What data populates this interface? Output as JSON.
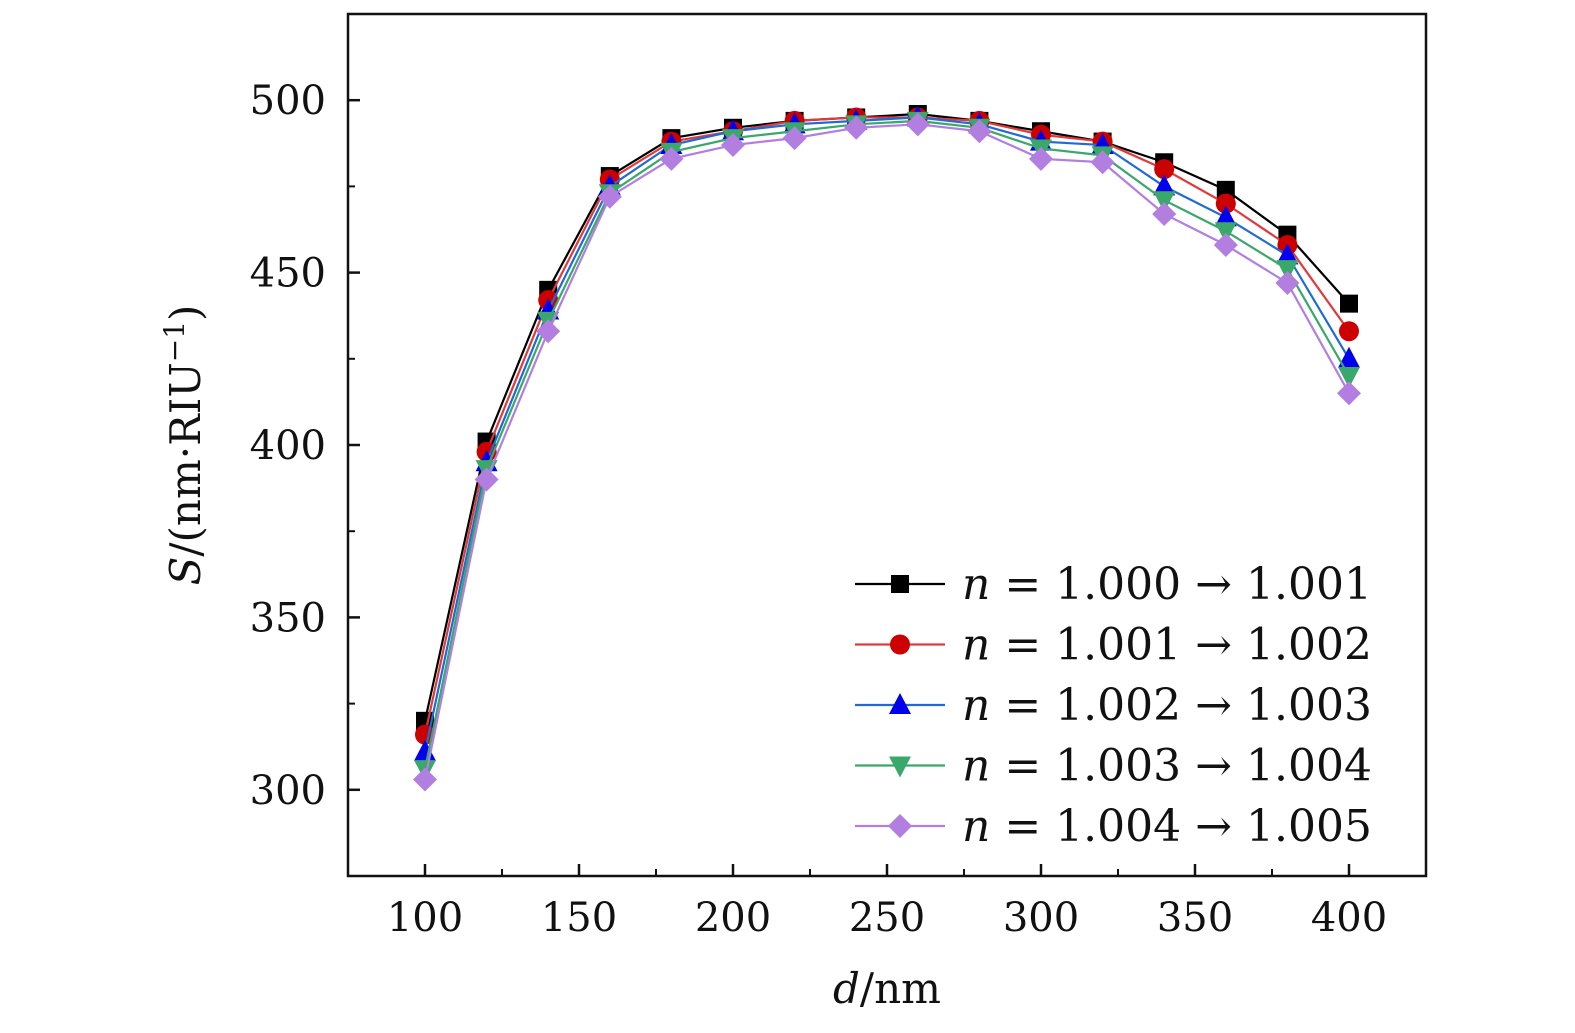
{
  "chart_data": {
    "type": "line",
    "title": "",
    "xlabel": {
      "var": "d",
      "rest": "/nm"
    },
    "ylabel": {
      "var": "S",
      "rest": "/(nm·RIU",
      "sup": "−1",
      "close": ")"
    },
    "xlim": [
      75,
      425
    ],
    "ylim": [
      275,
      525
    ],
    "xticks": [
      100,
      150,
      200,
      250,
      300,
      350,
      400
    ],
    "yticks": [
      300,
      350,
      400,
      450,
      500
    ],
    "x": [
      100,
      120,
      140,
      160,
      180,
      200,
      220,
      240,
      260,
      280,
      300,
      320,
      340,
      360,
      380,
      400
    ],
    "legend_position": "bottom-right",
    "series": [
      {
        "name": "n = 1.000 → 1.001",
        "n": "n",
        "label": " = 1.000 → 1.001",
        "marker": "square",
        "color": "#000000",
        "values": [
          320,
          401,
          445,
          478,
          489,
          492,
          494,
          495,
          496,
          494,
          491,
          488,
          482,
          474,
          461,
          441
        ]
      },
      {
        "name": "n = 1.001 → 1.002",
        "n": "n",
        "label": " = 1.001 → 1.002",
        "marker": "circle",
        "color": "#e03a3a",
        "marker_color": "#cc0000",
        "values": [
          316,
          398,
          442,
          477,
          488,
          491,
          494,
          495,
          495,
          494,
          490,
          488,
          480,
          470,
          458,
          433
        ]
      },
      {
        "name": "n = 1.002 → 1.003",
        "n": "n",
        "label": " = 1.002 → 1.003",
        "marker": "triangle-up",
        "color": "#1f6ad6",
        "marker_color": "#0000ee",
        "values": [
          311,
          395,
          439,
          475,
          487,
          491,
          493,
          494,
          495,
          493,
          488,
          487,
          475,
          466,
          455,
          425
        ]
      },
      {
        "name": "n = 1.003 → 1.004",
        "n": "n",
        "label": " = 1.003 → 1.004",
        "marker": "triangle-down",
        "color": "#3aa86a",
        "values": [
          306,
          393,
          436,
          473,
          485,
          489,
          491,
          493,
          494,
          492,
          486,
          484,
          471,
          462,
          451,
          420
        ]
      },
      {
        "name": "n = 1.004 → 1.005",
        "n": "n",
        "label": " = 1.004 → 1.005",
        "marker": "diamond",
        "color": "#b27ee0",
        "values": [
          303,
          390,
          433,
          472,
          483,
          487,
          489,
          492,
          493,
          491,
          483,
          482,
          467,
          458,
          447,
          415
        ]
      }
    ]
  }
}
